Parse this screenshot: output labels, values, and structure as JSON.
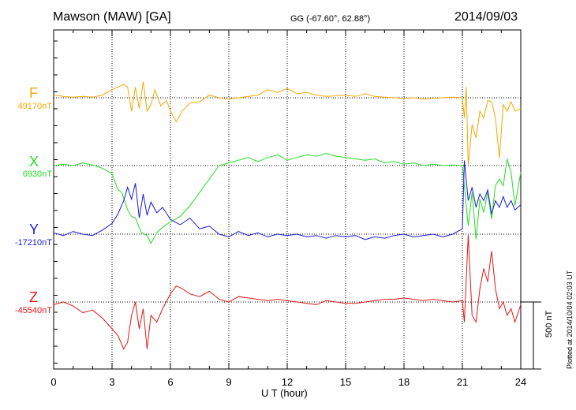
{
  "header": {
    "station": "Mawson (MAW)  [GA]",
    "coordinates": "GG (-67.60°,  62.88°)",
    "date": "2014/09/03"
  },
  "side_labels": {
    "scale": "500 nT",
    "plotted": "Plotted at 2014/10/04 02:03 UT"
  },
  "colors": {
    "F": "#f5a800",
    "X": "#22dd22",
    "Y": "#1a1ad6",
    "Z": "#e01818"
  },
  "chart_data": {
    "type": "line",
    "title": "Mawson (MAW)  [GA]",
    "xlabel": "U T (hour)",
    "xlim": [
      0,
      24
    ],
    "x_ticks": [
      "0",
      "3",
      "6",
      "9",
      "12",
      "15",
      "18",
      "21",
      "24"
    ],
    "scale_bar_nT": 500,
    "grid": true,
    "series": [
      {
        "name": "F",
        "baseline_label": "49170nT",
        "baseline_nT": 49170,
        "x": [
          0,
          0.5,
          1,
          1.5,
          2,
          2.5,
          3,
          3.3,
          3.6,
          3.8,
          4,
          4.2,
          4.4,
          4.6,
          4.8,
          5,
          5.2,
          5.5,
          5.8,
          6,
          6.3,
          6.6,
          7,
          7.5,
          8,
          8.5,
          9,
          9.5,
          10,
          10.5,
          11,
          11.5,
          12,
          12.5,
          13,
          13.5,
          14,
          14.5,
          15,
          15.5,
          16,
          16.5,
          17,
          17.5,
          18,
          18.5,
          19,
          19.5,
          20,
          20.5,
          21,
          21.1,
          21.2,
          21.3,
          21.5,
          21.7,
          21.9,
          22.1,
          22.3,
          22.5,
          22.7,
          22.9,
          23.1,
          23.3,
          23.5,
          23.7,
          24
        ],
        "y": [
          20,
          10,
          5,
          10,
          5,
          20,
          60,
          80,
          100,
          80,
          -100,
          80,
          -80,
          120,
          -100,
          -50,
          60,
          -60,
          -20,
          -100,
          -180,
          -100,
          -40,
          -30,
          20,
          0,
          -10,
          0,
          10,
          20,
          60,
          40,
          70,
          30,
          40,
          20,
          10,
          15,
          20,
          10,
          30,
          10,
          5,
          0,
          -5,
          0,
          -10,
          -5,
          0,
          5,
          0,
          -150,
          80,
          -500,
          -200,
          -300,
          -100,
          -150,
          -20,
          -30,
          -150,
          -450,
          -50,
          -100,
          -30,
          -100,
          -80
        ]
      },
      {
        "name": "X",
        "baseline_label": "6930nT",
        "baseline_nT": 6930,
        "x": [
          0,
          0.5,
          1,
          1.5,
          2,
          2.5,
          3,
          3.3,
          3.5,
          3.8,
          4,
          4.2,
          4.5,
          4.8,
          5,
          5.3,
          5.6,
          6,
          6.5,
          7,
          7.5,
          8,
          8.5,
          9,
          9.5,
          10,
          10.5,
          11,
          11.5,
          12,
          12.5,
          13,
          13.5,
          14,
          14.5,
          15,
          15.5,
          16,
          16.5,
          17,
          17.5,
          18,
          18.5,
          19,
          19.5,
          20,
          20.5,
          21,
          21.1,
          21.3,
          21.5,
          21.7,
          21.9,
          22.1,
          22.3,
          22.5,
          22.7,
          22.9,
          23.1,
          23.3,
          23.5,
          23.7,
          24
        ],
        "y": [
          0,
          10,
          0,
          20,
          5,
          -20,
          -60,
          -180,
          -200,
          -330,
          -380,
          -390,
          -500,
          -520,
          -580,
          -500,
          -460,
          -420,
          -380,
          -300,
          -200,
          -100,
          0,
          20,
          40,
          60,
          30,
          60,
          80,
          40,
          60,
          80,
          70,
          90,
          70,
          60,
          50,
          40,
          50,
          20,
          30,
          10,
          20,
          0,
          10,
          0,
          5,
          0,
          -150,
          -450,
          -200,
          -550,
          -250,
          -350,
          -200,
          -400,
          -150,
          -100,
          -150,
          50,
          -50,
          -300,
          -50
        ]
      },
      {
        "name": "Y",
        "baseline_label": "-17210nT",
        "baseline_nT": -17210,
        "x": [
          0,
          0.5,
          1,
          1.5,
          2,
          2.5,
          3,
          3.3,
          3.6,
          3.8,
          4,
          4.2,
          4.4,
          4.6,
          4.8,
          5,
          5.3,
          5.6,
          6,
          6.5,
          7,
          7.5,
          8,
          8.5,
          9,
          9.5,
          10,
          10.5,
          11,
          11.5,
          12,
          12.5,
          13,
          13.5,
          14,
          14.5,
          15,
          15.5,
          16,
          16.5,
          17,
          17.5,
          18,
          18.5,
          19,
          19.5,
          20,
          20.5,
          21,
          21.1,
          21.3,
          21.5,
          21.7,
          21.9,
          22.1,
          22.3,
          22.5,
          22.7,
          22.9,
          23.1,
          23.3,
          23.5,
          23.7,
          24
        ],
        "y": [
          10,
          -10,
          20,
          0,
          -10,
          30,
          80,
          150,
          250,
          350,
          260,
          380,
          120,
          300,
          140,
          240,
          160,
          200,
          110,
          70,
          120,
          40,
          60,
          0,
          -20,
          20,
          -10,
          10,
          -20,
          0,
          -10,
          0,
          -20,
          -10,
          -30,
          -10,
          -20,
          -10,
          -40,
          -20,
          -30,
          -10,
          0,
          -20,
          -10,
          0,
          -20,
          0,
          40,
          550,
          250,
          350,
          200,
          300,
          250,
          330,
          150,
          250,
          200,
          280,
          200,
          250,
          180,
          220
        ]
      },
      {
        "name": "Z",
        "baseline_label": "-45540nT",
        "baseline_nT": -45540,
        "x": [
          0,
          0.5,
          1,
          1.5,
          2,
          2.5,
          3,
          3.3,
          3.6,
          3.8,
          4,
          4.2,
          4.4,
          4.6,
          4.8,
          5,
          5.3,
          5.6,
          6,
          6.3,
          6.6,
          7,
          7.5,
          8,
          8.5,
          9,
          9.5,
          10,
          10.5,
          11,
          11.5,
          12,
          12.5,
          13,
          13.5,
          14,
          14.5,
          15,
          15.5,
          16,
          16.5,
          17,
          17.5,
          18,
          18.5,
          19,
          19.5,
          20,
          20.5,
          21,
          21.1,
          21.3,
          21.5,
          21.7,
          21.9,
          22.1,
          22.3,
          22.5,
          22.7,
          22.9,
          23.1,
          23.3,
          23.5,
          23.7,
          24
        ],
        "y": [
          -20,
          0,
          -30,
          -80,
          -60,
          -120,
          -200,
          -250,
          -350,
          -300,
          -100,
          0,
          -200,
          -50,
          -350,
          -100,
          -150,
          -50,
          60,
          120,
          100,
          60,
          40,
          80,
          20,
          0,
          40,
          30,
          20,
          10,
          20,
          10,
          0,
          -10,
          -20,
          10,
          0,
          -10,
          -10,
          0,
          10,
          20,
          20,
          30,
          20,
          10,
          20,
          10,
          0,
          10,
          -150,
          500,
          -100,
          -150,
          100,
          250,
          150,
          380,
          100,
          -50,
          0,
          -100,
          -50,
          -150,
          -20
        ]
      }
    ]
  }
}
